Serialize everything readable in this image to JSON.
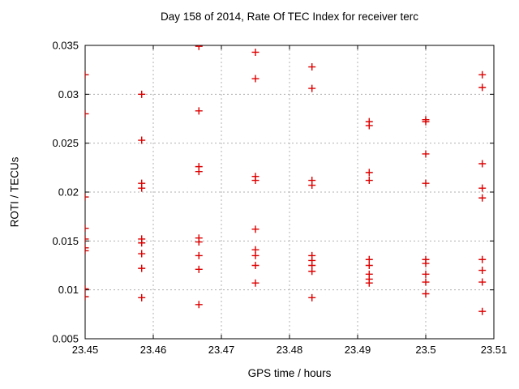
{
  "chart_data": {
    "type": "scatter",
    "title": "Day 158 of 2014, Rate Of TEC Index for receiver terc",
    "xlabel": "GPS time / hours",
    "ylabel": "ROTI / TECUs",
    "xlim": [
      23.45,
      23.51
    ],
    "ylim": [
      0.005,
      0.035
    ],
    "xtick_values": [
      23.45,
      23.46,
      23.47,
      23.48,
      23.49,
      23.5,
      23.51
    ],
    "xtick_labels": [
      "23.45",
      "23.46",
      "23.47",
      "23.48",
      "23.49",
      "23.5",
      "23.51"
    ],
    "ytick_values": [
      0.005,
      0.01,
      0.015,
      0.02,
      0.025,
      0.03,
      0.035
    ],
    "ytick_labels": [
      "0.005",
      "0.01",
      "0.015",
      "0.02",
      "0.025",
      "0.03",
      "0.035"
    ],
    "grid": true,
    "legend": "none",
    "marker": {
      "shape": "plus",
      "color": "#dd0000",
      "size": 9
    },
    "frame_color": "#000000",
    "grid_color": "#b0b0b0",
    "series": [
      {
        "x": 23.45,
        "y": [
          0.032,
          0.028,
          0.0195,
          0.0163,
          0.0152,
          0.0143,
          0.014,
          0.0101,
          0.0093
        ]
      },
      {
        "x": 23.4583,
        "y": [
          0.03,
          0.0253,
          0.0209,
          0.0204,
          0.0152,
          0.0148,
          0.0137,
          0.0122,
          0.0092
        ]
      },
      {
        "x": 23.4667,
        "y": [
          0.0349,
          0.0283,
          0.0226,
          0.0221,
          0.0153,
          0.0149,
          0.0135,
          0.0121,
          0.0085
        ]
      },
      {
        "x": 23.475,
        "y": [
          0.0343,
          0.0316,
          0.0216,
          0.0212,
          0.0162,
          0.0141,
          0.0135,
          0.0125,
          0.0107
        ]
      },
      {
        "x": 23.4833,
        "y": [
          0.0328,
          0.0306,
          0.0212,
          0.0207,
          0.0135,
          0.013,
          0.0125,
          0.0119,
          0.0092
        ]
      },
      {
        "x": 23.4917,
        "y": [
          0.0272,
          0.0268,
          0.022,
          0.0212,
          0.0131,
          0.0125,
          0.0116,
          0.0111,
          0.0107
        ]
      },
      {
        "x": 23.5,
        "y": [
          0.0274,
          0.0272,
          0.0239,
          0.0209,
          0.0131,
          0.0127,
          0.0116,
          0.0108,
          0.0096
        ]
      },
      {
        "x": 23.5083,
        "y": [
          0.032,
          0.0307,
          0.0229,
          0.0204,
          0.0194,
          0.0131,
          0.012,
          0.0108,
          0.0078
        ]
      }
    ]
  }
}
